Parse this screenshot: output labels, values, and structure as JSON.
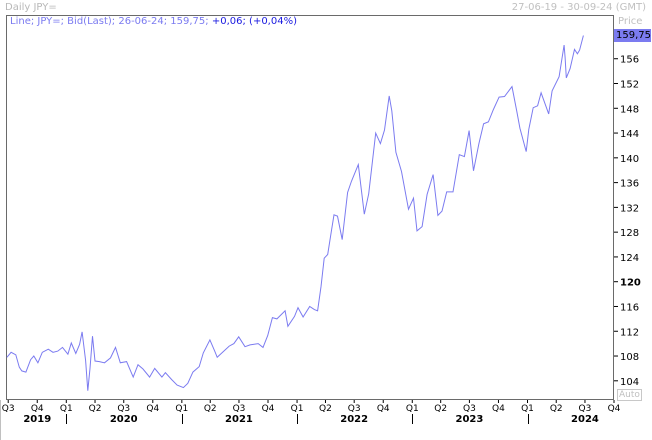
{
  "header": {
    "title": "Daily JPY=",
    "date_range": "27-06-19 - 30-09-24 (GMT)"
  },
  "legend": {
    "text": "Line; JPY=; Bid(Last); 26-06-24; 159,75;",
    "change": "+0,06; (+0,04%)"
  },
  "axis": {
    "price_label": "Price",
    "last_value": "159,75",
    "auto_label": "Auto"
  },
  "colors": {
    "line": "#7b7bf0",
    "last_badge": "#7b7bf0",
    "change": "#1a1ae0"
  },
  "chart_data": {
    "type": "line",
    "series_label": "JPY= Bid(Last)",
    "ylim": [
      100.9,
      162.9
    ],
    "yticks": [
      104,
      108,
      112,
      116,
      120,
      124,
      128,
      132,
      136,
      140,
      144,
      148,
      152,
      156
    ],
    "ytick_bold": 120,
    "xlim": [
      "2019-06-24",
      "2024-10-01"
    ],
    "quarter_ticks": [
      {
        "date": "2019-07-01",
        "label": "Q3"
      },
      {
        "date": "2019-10-01",
        "label": "Q4"
      },
      {
        "date": "2020-01-01",
        "label": "Q1"
      },
      {
        "date": "2020-04-01",
        "label": "Q2"
      },
      {
        "date": "2020-07-01",
        "label": "Q3"
      },
      {
        "date": "2020-10-01",
        "label": "Q4"
      },
      {
        "date": "2021-01-01",
        "label": "Q1"
      },
      {
        "date": "2021-04-01",
        "label": "Q2"
      },
      {
        "date": "2021-07-01",
        "label": "Q3"
      },
      {
        "date": "2021-10-01",
        "label": "Q4"
      },
      {
        "date": "2022-01-01",
        "label": "Q1"
      },
      {
        "date": "2022-04-01",
        "label": "Q2"
      },
      {
        "date": "2022-07-01",
        "label": "Q3"
      },
      {
        "date": "2022-10-01",
        "label": "Q4"
      },
      {
        "date": "2023-01-01",
        "label": "Q1"
      },
      {
        "date": "2023-04-01",
        "label": "Q2"
      },
      {
        "date": "2023-07-01",
        "label": "Q3"
      },
      {
        "date": "2023-10-01",
        "label": "Q4"
      },
      {
        "date": "2024-01-01",
        "label": "Q1"
      },
      {
        "date": "2024-04-01",
        "label": "Q2"
      },
      {
        "date": "2024-07-01",
        "label": "Q3"
      },
      {
        "date": "2024-10-01",
        "label": "Q4"
      }
    ],
    "year_labels": [
      {
        "date": "2019-10-01",
        "label": "2019"
      },
      {
        "date": "2020-07-01",
        "label": "2020"
      },
      {
        "date": "2021-07-01",
        "label": "2021"
      },
      {
        "date": "2022-07-01",
        "label": "2022"
      },
      {
        "date": "2023-07-01",
        "label": "2023"
      },
      {
        "date": "2024-07-01",
        "label": "2024"
      }
    ],
    "year_ticks": [
      "2020-01-01",
      "2021-01-01",
      "2022-01-01",
      "2023-01-01",
      "2024-01-01"
    ],
    "points": [
      [
        "2019-06-27",
        107.8
      ],
      [
        "2019-07-10",
        108.6
      ],
      [
        "2019-07-25",
        108.2
      ],
      [
        "2019-08-05",
        106.2
      ],
      [
        "2019-08-13",
        105.6
      ],
      [
        "2019-08-26",
        105.4
      ],
      [
        "2019-09-10",
        107.4
      ],
      [
        "2019-09-20",
        108.0
      ],
      [
        "2019-10-03",
        106.9
      ],
      [
        "2019-10-17",
        108.6
      ],
      [
        "2019-11-05",
        109.1
      ],
      [
        "2019-11-20",
        108.6
      ],
      [
        "2019-12-05",
        108.8
      ],
      [
        "2019-12-20",
        109.4
      ],
      [
        "2020-01-06",
        108.3
      ],
      [
        "2020-01-17",
        110.1
      ],
      [
        "2020-01-31",
        108.4
      ],
      [
        "2020-02-12",
        109.9
      ],
      [
        "2020-02-20",
        111.9
      ],
      [
        "2020-03-02",
        107.3
      ],
      [
        "2020-03-09",
        102.4
      ],
      [
        "2020-03-16",
        106.0
      ],
      [
        "2020-03-24",
        111.2
      ],
      [
        "2020-04-01",
        107.2
      ],
      [
        "2020-04-15",
        107.1
      ],
      [
        "2020-05-01",
        106.9
      ],
      [
        "2020-05-20",
        107.7
      ],
      [
        "2020-06-05",
        109.4
      ],
      [
        "2020-06-20",
        106.9
      ],
      [
        "2020-07-10",
        107.1
      ],
      [
        "2020-07-31",
        104.6
      ],
      [
        "2020-08-15",
        106.6
      ],
      [
        "2020-08-31",
        105.9
      ],
      [
        "2020-09-21",
        104.6
      ],
      [
        "2020-10-07",
        106.0
      ],
      [
        "2020-10-30",
        104.6
      ],
      [
        "2020-11-10",
        105.3
      ],
      [
        "2020-11-30",
        104.2
      ],
      [
        "2020-12-17",
        103.3
      ],
      [
        "2021-01-06",
        102.9
      ],
      [
        "2021-01-20",
        103.6
      ],
      [
        "2021-02-05",
        105.4
      ],
      [
        "2021-02-25",
        106.3
      ],
      [
        "2021-03-10",
        108.5
      ],
      [
        "2021-03-31",
        110.6
      ],
      [
        "2021-04-15",
        108.8
      ],
      [
        "2021-04-23",
        107.8
      ],
      [
        "2021-05-10",
        108.6
      ],
      [
        "2021-05-31",
        109.6
      ],
      [
        "2021-06-15",
        110.0
      ],
      [
        "2021-06-30",
        111.1
      ],
      [
        "2021-07-20",
        109.5
      ],
      [
        "2021-08-05",
        109.8
      ],
      [
        "2021-08-31",
        110.0
      ],
      [
        "2021-09-15",
        109.4
      ],
      [
        "2021-09-30",
        111.3
      ],
      [
        "2021-10-15",
        114.2
      ],
      [
        "2021-10-29",
        114.0
      ],
      [
        "2021-11-24",
        115.3
      ],
      [
        "2021-12-03",
        112.8
      ],
      [
        "2021-12-24",
        114.4
      ],
      [
        "2022-01-04",
        115.8
      ],
      [
        "2022-01-20",
        114.3
      ],
      [
        "2022-02-10",
        116.0
      ],
      [
        "2022-02-25",
        115.5
      ],
      [
        "2022-03-07",
        115.3
      ],
      [
        "2022-03-18",
        119.2
      ],
      [
        "2022-03-28",
        123.8
      ],
      [
        "2022-04-08",
        124.4
      ],
      [
        "2022-04-20",
        128.3
      ],
      [
        "2022-04-28",
        130.8
      ],
      [
        "2022-05-09",
        130.6
      ],
      [
        "2022-05-24",
        126.8
      ],
      [
        "2022-06-10",
        134.4
      ],
      [
        "2022-06-22",
        136.2
      ],
      [
        "2022-07-14",
        138.9
      ],
      [
        "2022-08-02",
        130.9
      ],
      [
        "2022-08-16",
        134.2
      ],
      [
        "2022-09-07",
        144.0
      ],
      [
        "2022-09-22",
        142.3
      ],
      [
        "2022-10-05",
        144.5
      ],
      [
        "2022-10-20",
        150.0
      ],
      [
        "2022-10-28",
        147.6
      ],
      [
        "2022-11-10",
        140.9
      ],
      [
        "2022-11-28",
        137.8
      ],
      [
        "2022-12-20",
        131.7
      ],
      [
        "2023-01-05",
        133.5
      ],
      [
        "2023-01-16",
        128.2
      ],
      [
        "2023-02-01",
        128.9
      ],
      [
        "2023-02-17",
        134.1
      ],
      [
        "2023-03-08",
        137.3
      ],
      [
        "2023-03-23",
        130.7
      ],
      [
        "2023-04-05",
        131.4
      ],
      [
        "2023-04-20",
        134.5
      ],
      [
        "2023-05-10",
        134.5
      ],
      [
        "2023-05-30",
        140.5
      ],
      [
        "2023-06-15",
        140.2
      ],
      [
        "2023-06-30",
        144.4
      ],
      [
        "2023-07-14",
        137.9
      ],
      [
        "2023-07-31",
        142.3
      ],
      [
        "2023-08-15",
        145.5
      ],
      [
        "2023-08-30",
        145.8
      ],
      [
        "2023-09-15",
        147.8
      ],
      [
        "2023-10-03",
        149.8
      ],
      [
        "2023-10-20",
        149.9
      ],
      [
        "2023-11-13",
        151.5
      ],
      [
        "2023-11-28",
        147.5
      ],
      [
        "2023-12-08",
        144.8
      ],
      [
        "2023-12-28",
        141.0
      ],
      [
        "2024-01-05",
        144.6
      ],
      [
        "2024-01-19",
        148.1
      ],
      [
        "2024-02-02",
        148.4
      ],
      [
        "2024-02-13",
        150.5
      ],
      [
        "2024-03-08",
        147.1
      ],
      [
        "2024-03-19",
        150.8
      ],
      [
        "2024-04-10",
        153.1
      ],
      [
        "2024-04-26",
        158.2
      ],
      [
        "2024-04-29",
        156.2
      ],
      [
        "2024-05-03",
        152.9
      ],
      [
        "2024-05-15",
        154.4
      ],
      [
        "2024-05-29",
        157.5
      ],
      [
        "2024-06-07",
        156.8
      ],
      [
        "2024-06-14",
        157.4
      ],
      [
        "2024-06-26",
        159.75
      ]
    ]
  }
}
